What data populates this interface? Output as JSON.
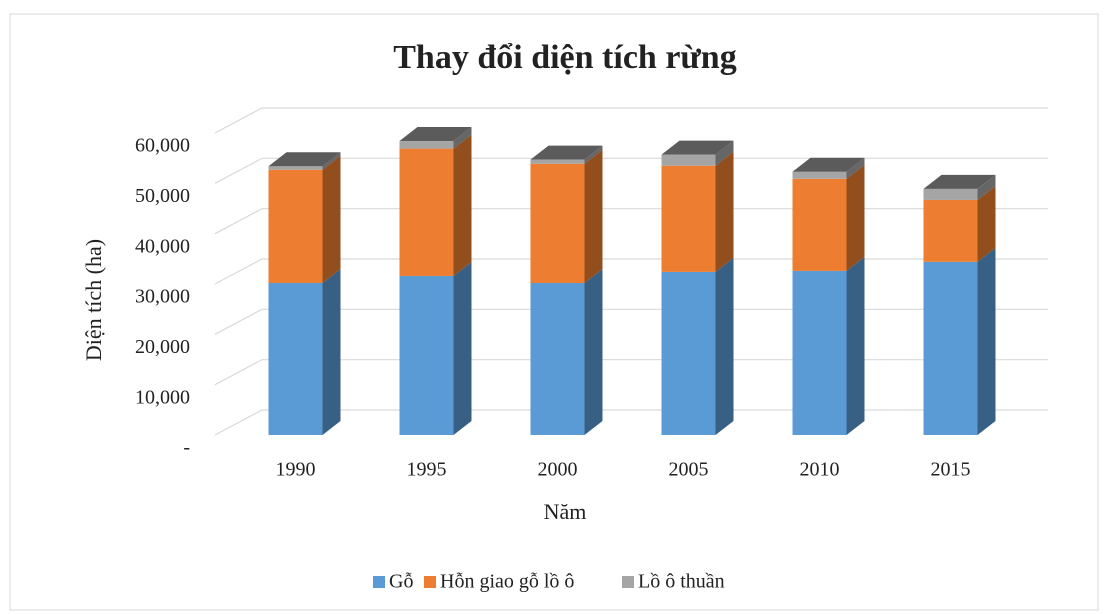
{
  "chart_data": {
    "type": "bar3d_stacked",
    "title": "Thay đổi diện tích rừng",
    "x_label": "Năm",
    "y_label": "Diện tích (ha)",
    "categories": [
      "1990",
      "1995",
      "2000",
      "2005",
      "2010",
      "2015"
    ],
    "series": [
      {
        "name": "Gỗ",
        "color": "#5b9bd5",
        "values": [
          30200,
          31600,
          30200,
          32400,
          32600,
          34400
        ]
      },
      {
        "name": "Hỗn giao gỗ lồ ô",
        "color": "#ed7d31",
        "values": [
          22500,
          25300,
          23700,
          21100,
          18300,
          12300
        ]
      },
      {
        "name": "Lồ ô thuần",
        "color": "#a5a5a5",
        "values": [
          700,
          1500,
          800,
          2200,
          1400,
          2200
        ]
      }
    ],
    "ylim": [
      0,
      60000
    ],
    "yticks": [
      {
        "value": 0,
        "label": "-"
      },
      {
        "value": 10000,
        "label": "10,000"
      },
      {
        "value": 20000,
        "label": "20,000"
      },
      {
        "value": 30000,
        "label": "30,000"
      },
      {
        "value": 40000,
        "label": "40,000"
      },
      {
        "value": 50000,
        "label": "50,000"
      },
      {
        "value": 60000,
        "label": "60,000"
      }
    ],
    "grid": true,
    "legend": "bottom"
  }
}
